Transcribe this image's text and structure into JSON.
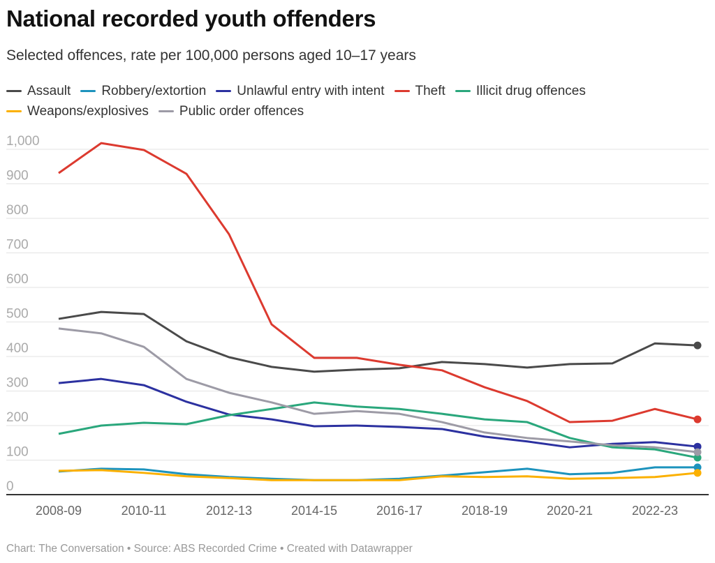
{
  "chart_data": {
    "type": "line",
    "title": "National recorded youth offenders",
    "subtitle": "Selected offences, rate per 100,000 persons aged 10–17 years",
    "categories": [
      "2008-09",
      "2009-10",
      "2010-11",
      "2011-12",
      "2012-13",
      "2013-14",
      "2014-15",
      "2015-16",
      "2016-17",
      "2017-18",
      "2018-19",
      "2019-20",
      "2020-21",
      "2021-22",
      "2022-23",
      "2023-24"
    ],
    "x_tick_labels": [
      "2008-09",
      "2010-11",
      "2012-13",
      "2014-15",
      "2016-17",
      "2018-19",
      "2020-21",
      "2022-23"
    ],
    "y_tick_labels": [
      "0",
      "100",
      "200",
      "300",
      "400",
      "500",
      "600",
      "700",
      "800",
      "900",
      "1,000"
    ],
    "ylim": [
      0,
      1000
    ],
    "grid": true,
    "legend_placement": "top",
    "series": [
      {
        "name": "Assault",
        "color": "#4a4a4a",
        "values": [
          509,
          529,
          523,
          444,
          398,
          370,
          356,
          362,
          366,
          384,
          378,
          368,
          378,
          380,
          438,
          432
        ]
      },
      {
        "name": "Robbery/extortion",
        "color": "#1d93bd",
        "values": [
          67,
          75,
          73,
          59,
          51,
          46,
          42,
          42,
          46,
          55,
          65,
          75,
          59,
          63,
          79,
          79
        ]
      },
      {
        "name": "Unlawful entry with intent",
        "color": "#2c31a0",
        "values": [
          323,
          335,
          317,
          269,
          232,
          218,
          198,
          200,
          196,
          190,
          168,
          154,
          137,
          147,
          152,
          139
        ]
      },
      {
        "name": "Theft",
        "color": "#dc3a2f",
        "values": [
          931,
          1018,
          998,
          929,
          754,
          493,
          396,
          396,
          376,
          360,
          311,
          271,
          210,
          214,
          248,
          218
        ]
      },
      {
        "name": "Illicit drug offences",
        "color": "#2aa77c",
        "values": [
          176,
          200,
          208,
          204,
          230,
          248,
          267,
          255,
          248,
          234,
          218,
          210,
          164,
          137,
          131,
          107
        ]
      },
      {
        "name": "Weapons/explosives",
        "color": "#fbb000",
        "values": [
          69,
          71,
          63,
          53,
          48,
          42,
          42,
          42,
          42,
          53,
          51,
          53,
          46,
          48,
          51,
          63
        ]
      },
      {
        "name": "Public order offences",
        "color": "#9d9ba6",
        "values": [
          481,
          467,
          428,
          335,
          295,
          267,
          234,
          242,
          234,
          210,
          180,
          164,
          154,
          143,
          137,
          123
        ]
      }
    ]
  },
  "footer": "Chart: The Conversation • Source: ABS Recorded Crime • Created with Datawrapper"
}
